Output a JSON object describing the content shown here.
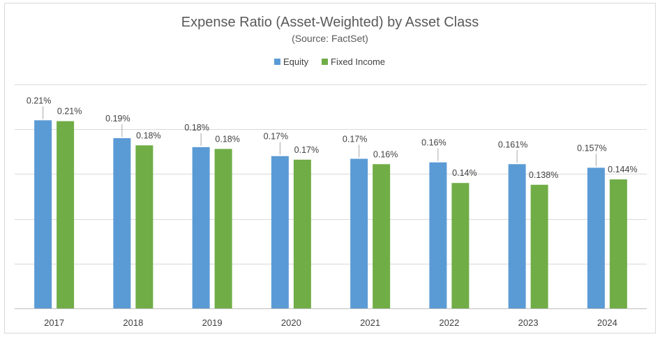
{
  "chart_data": {
    "type": "bar",
    "title": "Expense Ratio (Asset-Weighted) by Asset Class",
    "subtitle": "(Source: FactSet)",
    "categories": [
      "2017",
      "2018",
      "2019",
      "2020",
      "2021",
      "2022",
      "2023",
      "2024"
    ],
    "series": [
      {
        "name": "Equity",
        "color": "#5b9bd5",
        "values": [
          0.21,
          0.19,
          0.18,
          0.17,
          0.167,
          0.163,
          0.161,
          0.157
        ],
        "labels": [
          "0.21%",
          "0.19%",
          "0.18%",
          "0.17%",
          "0.17%",
          "0.16%",
          "0.161%",
          "0.157%"
        ]
      },
      {
        "name": "Fixed Income",
        "color": "#70ad47",
        "values": [
          0.209,
          0.182,
          0.178,
          0.166,
          0.161,
          0.14,
          0.138,
          0.144
        ],
        "labels": [
          "0.21%",
          "0.18%",
          "0.18%",
          "0.17%",
          "0.16%",
          "0.14%",
          "0.138%",
          "0.144%"
        ]
      }
    ],
    "ylim": [
      0,
      0.25
    ],
    "grid": true,
    "y_tick_labels_visible": false,
    "legend_position": "top-center"
  }
}
